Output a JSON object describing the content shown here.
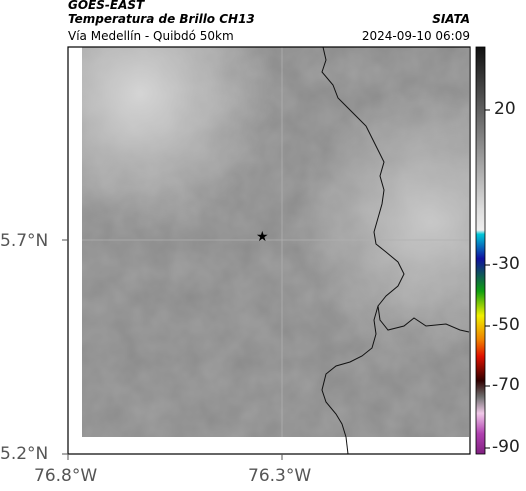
{
  "header": {
    "satellite": "GOES-EAST",
    "product": "Temperatura de Brillo CH13",
    "region": "Vía Medellín - Quibdó 50km",
    "agency": "SIATA",
    "timestamp": "2024-09-10 06:09"
  },
  "axes": {
    "lat_ticks": [
      "5.7°N",
      "5.2°N"
    ],
    "lon_ticks": [
      "76.8°W",
      "76.3°W"
    ]
  },
  "colorbar": {
    "ticks": [
      "20",
      "-30",
      "-50",
      "-70",
      "-90"
    ],
    "colors": {
      "cold_black": "#111111",
      "cyan": "#00c8d8",
      "blue": "#1010a0",
      "green": "#20c020",
      "yellow": "#f0f000",
      "red": "#e01000",
      "magenta": "#b040b0"
    }
  },
  "marker": {
    "symbol": "★"
  }
}
